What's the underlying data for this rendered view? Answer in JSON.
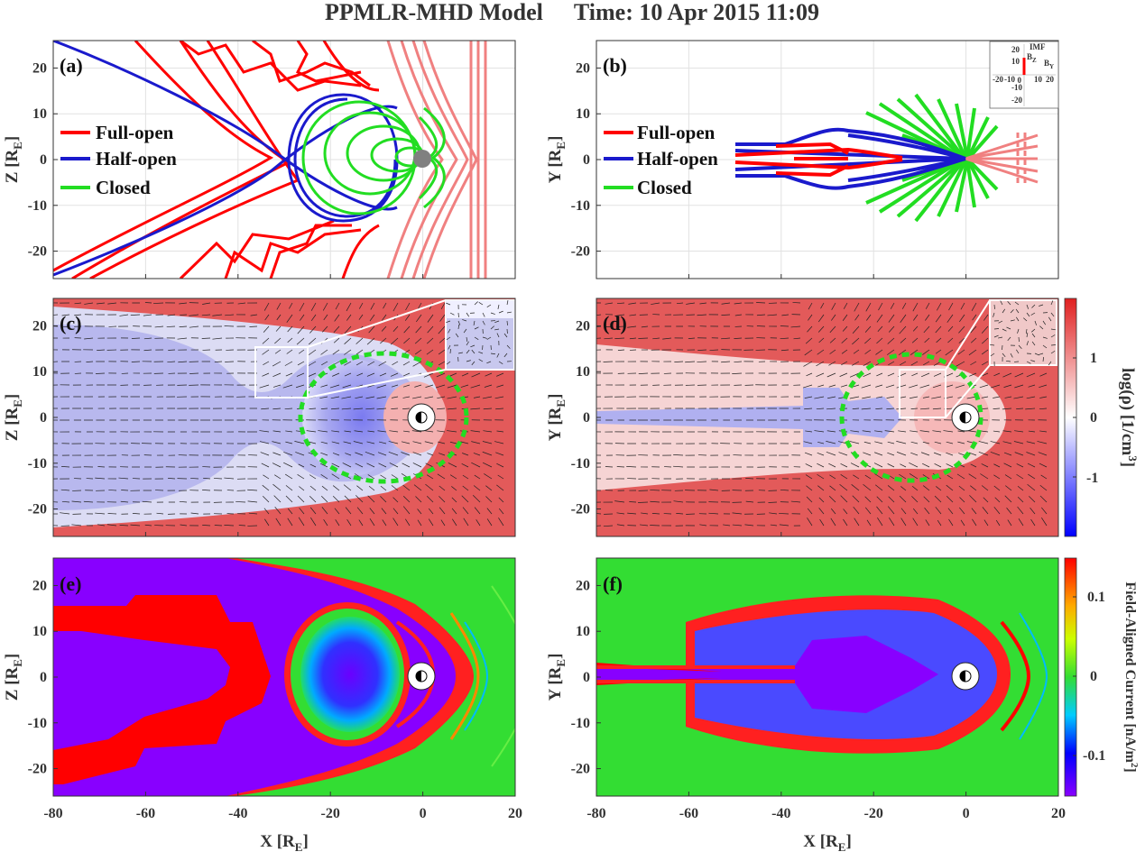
{
  "title": {
    "model": "PPMLR-MHD Model",
    "time": "Time: 10 Apr 2015 11:09"
  },
  "colors": {
    "full_open": "#ff0000",
    "half_open": "#1a1acc",
    "closed": "#22dd22",
    "imf_lines": "#f08080",
    "earth": "#808080",
    "density_high": "#e03030",
    "density_mid": "#ffffff",
    "density_low": "#2a2aff",
    "fac_high": "#ff0000",
    "fac_mid": "#33dd33",
    "fac_low": "#8800ff"
  },
  "imf_inset": {
    "title": "IMF",
    "bz_label": "B",
    "bz_sub": "Z",
    "by_label": "B",
    "by_sub": "Y",
    "ticks": [
      "20",
      "10",
      "0",
      "-10",
      "-20"
    ],
    "x_ticks": [
      "-20",
      "-10",
      "0",
      "10",
      "20"
    ]
  },
  "chart_data": [
    {
      "panel": "(a)",
      "type": "line",
      "description": "Magnetic field lines in XZ plane",
      "xlabel": "X",
      "xlabel_sub": "E",
      "ylabel": "Z",
      "ylabel_sub": "E",
      "xlim": [
        -80,
        20
      ],
      "ylim": [
        -26,
        26
      ],
      "grid": true,
      "legend_position": "left",
      "y_ticks": [
        "20",
        "10",
        "0",
        "-10",
        "-20"
      ],
      "legend": [
        {
          "name": "Full-open",
          "color": "#ff0000"
        },
        {
          "name": "Half-open",
          "color": "#1a1acc"
        },
        {
          "name": "Closed",
          "color": "#22dd22"
        }
      ]
    },
    {
      "panel": "(b)",
      "type": "line",
      "description": "Magnetic field lines in XY plane",
      "xlabel": "X",
      "xlabel_sub": "E",
      "ylabel": "Y",
      "ylabel_sub": "E",
      "xlim": [
        -80,
        20
      ],
      "ylim": [
        -26,
        26
      ],
      "grid": true,
      "legend_position": "left",
      "y_ticks": [
        "20",
        "10",
        "0",
        "-10",
        "-20"
      ],
      "legend": [
        {
          "name": "Full-open",
          "color": "#ff0000"
        },
        {
          "name": "Half-open",
          "color": "#1a1acc"
        },
        {
          "name": "Closed",
          "color": "#22dd22"
        }
      ]
    },
    {
      "panel": "(c)",
      "type": "heatmap",
      "description": "log density with velocity vectors, XZ plane",
      "xlabel": "X",
      "xlabel_sub": "E",
      "ylabel": "Z",
      "ylabel_sub": "E",
      "xlim": [
        -80,
        20
      ],
      "ylim": [
        -26,
        26
      ],
      "y_ticks": [
        "20",
        "10",
        "0",
        "-10",
        "-20"
      ]
    },
    {
      "panel": "(d)",
      "type": "heatmap",
      "description": "log density with velocity vectors, XY plane",
      "xlabel": "X",
      "xlabel_sub": "E",
      "ylabel": "Y",
      "ylabel_sub": "E",
      "xlim": [
        -80,
        20
      ],
      "ylim": [
        -26,
        26
      ],
      "y_ticks": [
        "20",
        "10",
        "0",
        "-10",
        "-20"
      ],
      "colorbar": {
        "label": "log(ρ) [1/cm",
        "label_sup": "3",
        "label_end": "]",
        "ticks": [
          "1",
          "0",
          "-1"
        ],
        "range": [
          -2,
          2
        ]
      }
    },
    {
      "panel": "(e)",
      "type": "heatmap",
      "description": "Field-aligned current, XZ plane",
      "xlabel": "X",
      "xlabel_sub": "E",
      "ylabel": "Z",
      "ylabel_sub": "E",
      "xlim": [
        -80,
        20
      ],
      "ylim": [
        -26,
        26
      ],
      "y_ticks": [
        "20",
        "10",
        "0",
        "-10",
        "-20"
      ],
      "x_ticks": [
        "-80",
        "-60",
        "-40",
        "-20",
        "0",
        "20"
      ]
    },
    {
      "panel": "(f)",
      "type": "heatmap",
      "description": "Field-aligned current, XY plane",
      "xlabel": "X",
      "xlabel_sub": "E",
      "ylabel": "Y",
      "ylabel_sub": "E",
      "xlim": [
        -80,
        20
      ],
      "ylim": [
        -26,
        26
      ],
      "y_ticks": [
        "20",
        "10",
        "0",
        "-10",
        "-20"
      ],
      "x_ticks": [
        "-80",
        "-60",
        "-40",
        "-20",
        "0",
        "20"
      ],
      "colorbar": {
        "label": "Field-Aligned Current [nA/m",
        "label_sup": "2",
        "label_end": "]",
        "ticks": [
          "0.1",
          "0",
          "-0.1"
        ],
        "range": [
          -0.15,
          0.15
        ]
      }
    }
  ]
}
